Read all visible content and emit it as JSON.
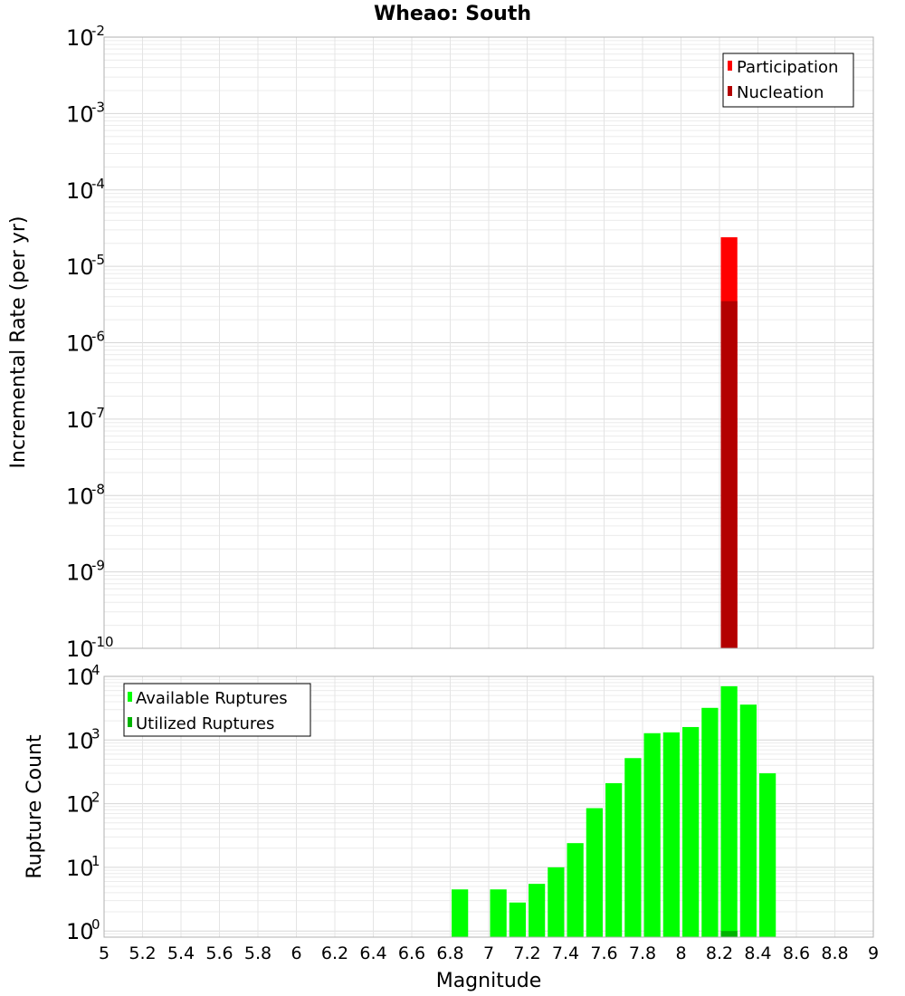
{
  "chart_data": [
    {
      "type": "bar",
      "title": "Wheao: South",
      "xlabel": "",
      "ylabel": "Incremental Rate (per yr)",
      "yscale": "log",
      "ylim": [
        1e-10,
        0.01
      ],
      "xlim": [
        5,
        9
      ],
      "y_ticks": [
        {
          "base": "10",
          "exp": "-2"
        },
        {
          "base": "10",
          "exp": "-3"
        },
        {
          "base": "10",
          "exp": "-4"
        },
        {
          "base": "10",
          "exp": "-5"
        },
        {
          "base": "10",
          "exp": "-6"
        },
        {
          "base": "10",
          "exp": "-7"
        },
        {
          "base": "10",
          "exp": "-8"
        },
        {
          "base": "10",
          "exp": "-9"
        },
        {
          "base": "10",
          "exp": "-10"
        }
      ],
      "grid": true,
      "legend_position": "top-right",
      "series": [
        {
          "name": "Participation",
          "color": "#ff0000",
          "x": [
            8.25
          ],
          "values": [
            2.4e-05
          ]
        },
        {
          "name": "Nucleation",
          "color": "#b30000",
          "x": [
            8.25
          ],
          "values": [
            3.5e-06
          ]
        }
      ]
    },
    {
      "type": "bar",
      "title": "",
      "xlabel": "Magnitude",
      "ylabel": "Rupture Count",
      "yscale": "log",
      "ylim": [
        0.8,
        10000
      ],
      "xlim": [
        5,
        9
      ],
      "x_ticks": [
        "5",
        "5.2",
        "5.4",
        "5.6",
        "5.8",
        "6",
        "6.2",
        "6.4",
        "6.6",
        "6.8",
        "7",
        "7.2",
        "7.4",
        "7.6",
        "7.8",
        "8",
        "8.2",
        "8.4",
        "8.6",
        "8.8",
        "9"
      ],
      "y_ticks": [
        {
          "base": "10",
          "exp": "4"
        },
        {
          "base": "10",
          "exp": "3"
        },
        {
          "base": "10",
          "exp": "2"
        },
        {
          "base": "10",
          "exp": "1"
        },
        {
          "base": "10",
          "exp": "0"
        }
      ],
      "grid": true,
      "legend_position": "top-left",
      "series": [
        {
          "name": "Available Ruptures",
          "color": "#00ff00",
          "x": [
            6.85,
            7.05,
            7.15,
            7.25,
            7.35,
            7.45,
            7.55,
            7.65,
            7.75,
            7.85,
            7.95,
            8.05,
            8.15,
            8.25,
            8.35,
            8.45
          ],
          "values": [
            4.5,
            4.5,
            2.8,
            5.5,
            10,
            24,
            85,
            210,
            520,
            1280,
            1320,
            1600,
            3200,
            7000,
            3600,
            300
          ]
        },
        {
          "name": "Utilized Ruptures",
          "color": "#00b300",
          "x": [
            8.25
          ],
          "values": [
            1
          ]
        }
      ]
    }
  ]
}
